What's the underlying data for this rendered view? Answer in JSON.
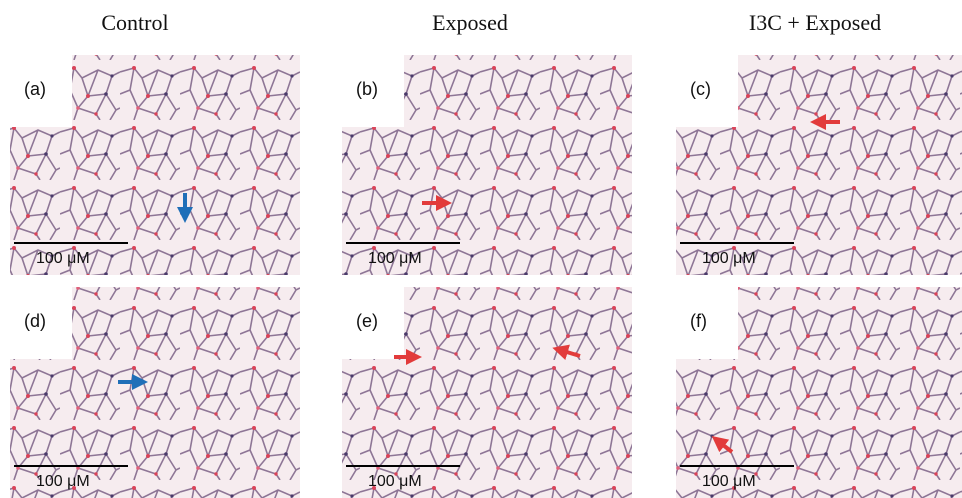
{
  "headers": [
    "Control",
    "Exposed",
    "I3C + Exposed"
  ],
  "panels": [
    {
      "label": "(a)",
      "scale": "100 μM"
    },
    {
      "label": "(b)",
      "scale": "100 μM"
    },
    {
      "label": "(c)",
      "scale": "100 μM"
    },
    {
      "label": "(d)",
      "scale": "100 μM"
    },
    {
      "label": "(e)",
      "scale": "100 μM"
    },
    {
      "label": "(f)",
      "scale": "100 μM"
    }
  ]
}
